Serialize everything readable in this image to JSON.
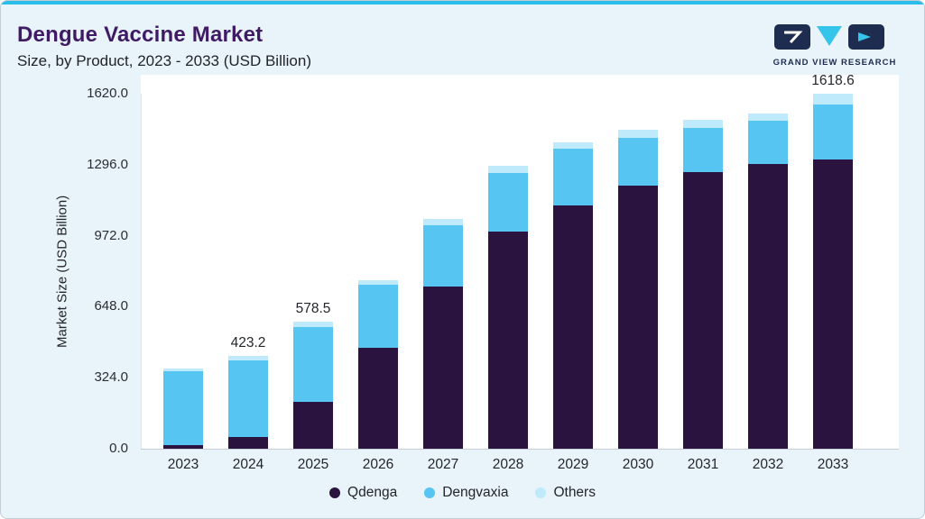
{
  "header": {
    "title": "Dengue Vaccine Market",
    "subtitle": "Size, by Product, 2023 - 2033 (USD Billion)",
    "logo_text": "GRAND VIEW RESEARCH"
  },
  "colors": {
    "accent_line": "#2bbde9",
    "card_background": "#e8f3fa",
    "plot_background": "#ffffff",
    "title_text": "#3f1b63",
    "logo_navy": "#1d2c4f",
    "logo_cyan": "#35c4ea",
    "qdenga": "#2b1340",
    "dengvaxia": "#56c5f1",
    "others": "#bfeafb"
  },
  "chart_data": {
    "type": "bar",
    "stacked": true,
    "title": "Dengue Vaccine Market",
    "subtitle": "Size, by Product, 2023 - 2033 (USD Billion)",
    "ylabel": "Market Size (USD Billion)",
    "ylim": [
      0,
      1620
    ],
    "ytick_labels": [
      "0.0",
      "324.0",
      "648.0",
      "972.0",
      "1296.0",
      "1620.0"
    ],
    "grid": false,
    "legend_position": "bottom",
    "categories": [
      "2023",
      "2024",
      "2025",
      "2026",
      "2027",
      "2028",
      "2029",
      "2030",
      "2031",
      "2032",
      "2033"
    ],
    "series": [
      {
        "name": "Qdenga",
        "color": "#2b1340",
        "values": [
          18,
          55,
          215,
          460,
          740,
          990,
          1110,
          1200,
          1262,
          1300,
          1320
        ]
      },
      {
        "name": "Dengvaxia",
        "color": "#56c5f1",
        "values": [
          337,
          350,
          341,
          290,
          280,
          270,
          258,
          220,
          203,
          195,
          250
        ]
      },
      {
        "name": "Others",
        "color": "#bfeafb",
        "values": [
          13,
          18.2,
          22.5,
          20,
          30,
          30,
          32,
          35,
          35,
          35,
          48.6
        ]
      }
    ],
    "bar_labels": {
      "2024": "423.2",
      "2025": "578.5",
      "2033": "1618.6"
    }
  }
}
